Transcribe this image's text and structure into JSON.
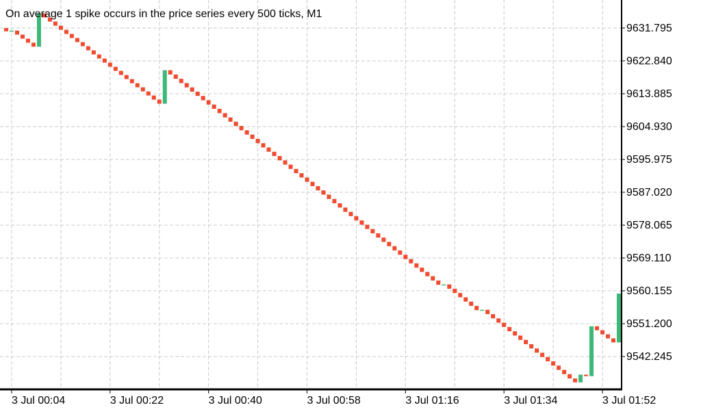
{
  "chart_data": {
    "type": "candlestick",
    "title": "On average 1 spike occurs in the price series every 500 ticks, M1",
    "categories": [
      null,
      "3 Jul 00:04",
      null,
      null,
      null,
      null,
      null,
      null,
      null,
      null,
      null,
      null,
      null,
      null,
      null,
      null,
      null,
      null,
      null,
      "3 Jul 00:22",
      null,
      null,
      null,
      null,
      null,
      null,
      null,
      null,
      null,
      null,
      null,
      null,
      null,
      null,
      null,
      null,
      null,
      "3 Jul 00:40",
      null,
      null,
      null,
      null,
      null,
      null,
      null,
      null,
      null,
      null,
      null,
      null,
      null,
      null,
      null,
      null,
      null,
      "3 Jul 00:58",
      null,
      null,
      null,
      null,
      null,
      null,
      null,
      null,
      null,
      null,
      null,
      null,
      null,
      null,
      null,
      null,
      null,
      "3 Jul 01:16",
      null,
      null,
      null,
      null,
      null,
      null,
      null,
      null,
      null,
      null,
      null,
      null,
      null,
      null,
      null,
      null,
      null,
      "3 Jul 01:34",
      null,
      null,
      null,
      null,
      null,
      null,
      null,
      null,
      null,
      null,
      null,
      null,
      null,
      null,
      null,
      null,
      null,
      "3 Jul 01:52",
      null,
      null,
      null
    ],
    "open": [
      9631.8,
      9630.9,
      9631.1,
      9630.0,
      9628.9,
      9627.8,
      9626.7,
      9635.8,
      9634.68,
      9633.56,
      9632.44,
      9631.32,
      9630.2,
      9629.08,
      9627.96,
      9626.84,
      9625.72,
      9624.6,
      9623.48,
      9622.36,
      9621.24,
      9620.12,
      9619.0,
      9617.88,
      9616.76,
      9615.64,
      9614.52,
      9613.4,
      9612.28,
      9611.16,
      9620.3,
      9619.13,
      9617.96,
      9616.79,
      9615.62,
      9614.45,
      9613.28,
      9612.11,
      9610.94,
      9609.77,
      9608.6,
      9607.43,
      9606.26,
      9605.09,
      9603.92,
      9602.75,
      9601.58,
      9600.41,
      9599.24,
      9598.07,
      9596.9,
      9595.73,
      9594.56,
      9593.39,
      9592.22,
      9591.05,
      9589.88,
      9588.71,
      9587.54,
      9586.37,
      9585.2,
      9584.03,
      9582.86,
      9581.69,
      9580.52,
      9579.35,
      9578.18,
      9577.01,
      9575.84,
      9574.67,
      9573.5,
      9572.33,
      9571.16,
      9569.99,
      9568.82,
      9567.65,
      9566.48,
      9565.31,
      9564.14,
      9562.97,
      9561.8,
      9561.9,
      9560.73,
      9559.56,
      9558.39,
      9557.22,
      9556.05,
      9554.88,
      9554.98,
      9553.81,
      9552.64,
      9551.47,
      9550.3,
      9549.13,
      9547.96,
      9546.79,
      9545.62,
      9544.45,
      9543.28,
      9542.11,
      9540.94,
      9539.77,
      9538.6,
      9537.43,
      9536.26,
      9535.2,
      9537.3,
      9536.9,
      9550.5,
      9549.4,
      9548.3,
      9547.2,
      9546.1
    ],
    "close": [
      9630.9,
      9631.1,
      9630.0,
      9628.9,
      9627.8,
      9626.7,
      9635.8,
      9634.68,
      9633.56,
      9632.44,
      9631.32,
      9630.2,
      9629.08,
      9627.96,
      9626.84,
      9625.72,
      9624.6,
      9623.48,
      9622.36,
      9621.24,
      9620.12,
      9619.0,
      9617.88,
      9616.76,
      9615.64,
      9614.52,
      9613.4,
      9612.28,
      9611.16,
      9620.3,
      9619.13,
      9617.96,
      9616.79,
      9615.62,
      9614.45,
      9613.28,
      9612.11,
      9610.94,
      9609.77,
      9608.6,
      9607.43,
      9606.26,
      9605.09,
      9603.92,
      9602.75,
      9601.58,
      9600.41,
      9599.24,
      9598.07,
      9596.9,
      9595.73,
      9594.56,
      9593.39,
      9592.22,
      9591.05,
      9589.88,
      9588.71,
      9587.54,
      9586.37,
      9585.2,
      9584.03,
      9582.86,
      9581.69,
      9580.52,
      9579.35,
      9578.18,
      9577.01,
      9575.84,
      9574.67,
      9573.5,
      9572.33,
      9571.16,
      9569.99,
      9568.82,
      9567.65,
      9566.48,
      9565.31,
      9564.14,
      9562.97,
      9561.8,
      9561.9,
      9560.73,
      9559.56,
      9558.39,
      9557.22,
      9556.05,
      9554.88,
      9554.98,
      9553.81,
      9552.64,
      9551.47,
      9550.3,
      9549.13,
      9547.96,
      9546.79,
      9545.62,
      9544.45,
      9543.28,
      9542.11,
      9540.94,
      9539.77,
      9538.6,
      9537.43,
      9536.26,
      9535.2,
      9537.3,
      9536.9,
      9550.5,
      9549.4,
      9548.3,
      9547.2,
      9546.1,
      9559.4
    ],
    "up_color": "#3cb878",
    "down_color": "#f04a2f",
    "ylim": [
      9533.48,
      9639.44
    ],
    "yticks": [
      9631.795,
      {
        "value": 9622.84,
        "label": "9622.840"
      },
      9613.885,
      {
        "value": 9604.93,
        "label": "9604.930"
      },
      9595.975,
      {
        "value": 9587.02,
        "label": "9587.020"
      },
      9578.065,
      {
        "value": 9569.11,
        "label": "9569.110"
      },
      9560.155,
      {
        "value": 9551.2,
        "label": "9551.200"
      },
      9542.245
    ],
    "grid": true
  }
}
